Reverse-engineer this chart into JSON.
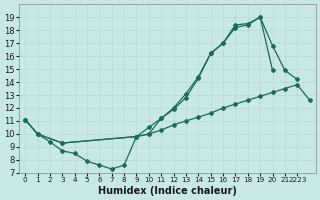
{
  "xlabel": "Humidex (Indice chaleur)",
  "bg_color": "#c8e8e8",
  "grid_color": "#b8d8d8",
  "line_color": "#1a6b5a",
  "ylim": [
    7,
    20
  ],
  "xlim": [
    -0.5,
    23.5
  ],
  "yticks": [
    7,
    8,
    9,
    10,
    11,
    12,
    13,
    14,
    15,
    16,
    17,
    18,
    19
  ],
  "xtick_labels": [
    "0",
    "1",
    "2",
    "3",
    "4",
    "5",
    "6",
    "7",
    "8",
    "9",
    "10",
    "11",
    "12",
    "13",
    "14",
    "15",
    "16",
    "17",
    "18",
    "19",
    "20",
    "21",
    "2223"
  ],
  "curve1_x": [
    0,
    1,
    2,
    3,
    4,
    5,
    6,
    7,
    8,
    9,
    10,
    11,
    12,
    13,
    14,
    15,
    16,
    17,
    18,
    19,
    20
  ],
  "curve1_y": [
    11.1,
    10.0,
    9.4,
    8.7,
    8.5,
    7.9,
    7.6,
    7.3,
    7.6,
    9.8,
    10.0,
    11.2,
    12.0,
    13.1,
    14.4,
    16.2,
    17.0,
    18.4,
    18.5,
    19.0,
    14.9
  ],
  "curve2_x": [
    0,
    1,
    3,
    9,
    10,
    11,
    12,
    13,
    14,
    15,
    16,
    17,
    18,
    19,
    20,
    21,
    22,
    23
  ],
  "curve2_y": [
    11.1,
    10.0,
    9.3,
    9.8,
    10.0,
    10.3,
    10.7,
    11.0,
    11.3,
    11.6,
    12.0,
    12.3,
    12.6,
    12.9,
    13.2,
    13.5,
    13.8,
    12.6
  ],
  "curve3_x": [
    0,
    1,
    3,
    9,
    10,
    11,
    12,
    13,
    14,
    15,
    16,
    17,
    18,
    19,
    20,
    21,
    22
  ],
  "curve3_y": [
    11.1,
    10.0,
    9.3,
    9.8,
    10.5,
    11.2,
    11.9,
    12.8,
    14.3,
    16.2,
    17.0,
    18.2,
    18.4,
    19.0,
    16.8,
    14.9,
    14.2
  ]
}
